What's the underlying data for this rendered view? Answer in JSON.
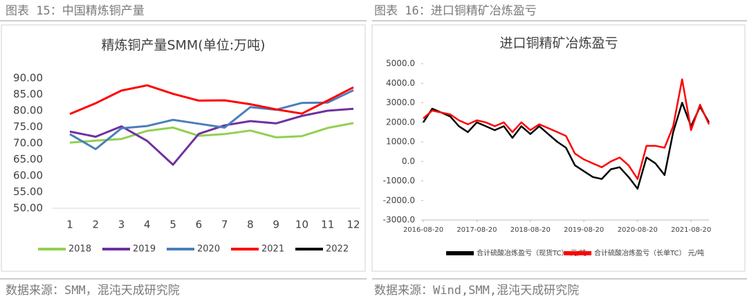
{
  "header_left": "图表 15：中国精炼铜产量",
  "header_right": "图表 16：进口铜精矿冶炼盈亏",
  "source_left": "数据来源：SMM，混沌天成研究院",
  "source_right": "数据来源：Wind,SMM,混沌天成研究院",
  "chart_data": [
    {
      "type": "line",
      "title": "精炼铜产量SMM(单位:万吨)",
      "categories": [
        "1",
        "2",
        "3",
        "4",
        "5",
        "6",
        "7",
        "8",
        "9",
        "10",
        "11",
        "12"
      ],
      "ylim": [
        50,
        90
      ],
      "yticks": [
        {
          "value": 50,
          "label": "50.00"
        },
        {
          "value": 55,
          "label": "55.00"
        },
        {
          "value": 60,
          "label": "60.00"
        },
        {
          "value": 65,
          "label": "65.00"
        },
        {
          "value": 70,
          "label": "70.00"
        },
        {
          "value": 75,
          "label": "75.00"
        },
        {
          "value": 80,
          "label": "80.00"
        },
        {
          "value": 85,
          "label": "85.00"
        },
        {
          "value": 90,
          "label": "90.00"
        }
      ],
      "grid": false,
      "series": [
        {
          "name": "2018",
          "color": "#92d050",
          "values": [
            70.2,
            70.8,
            71.3,
            73.8,
            74.8,
            72.3,
            72.8,
            73.9,
            71.8,
            72.2,
            74.7,
            76.2
          ]
        },
        {
          "name": "2019",
          "color": "#7030a0",
          "values": [
            73.6,
            72.0,
            75.2,
            70.7,
            63.4,
            72.9,
            75.5,
            76.8,
            76.1,
            78.4,
            80.0,
            80.6
          ]
        },
        {
          "name": "2020",
          "color": "#4a7ebb",
          "values": [
            72.8,
            68.2,
            74.6,
            75.3,
            77.2,
            76.0,
            74.8,
            81.1,
            80.3,
            82.4,
            82.5,
            86.3
          ]
        },
        {
          "name": "2021",
          "color": "#ff0000",
          "values": [
            79.0,
            82.3,
            86.2,
            87.8,
            85.2,
            83.1,
            83.2,
            82.0,
            80.4,
            79.1,
            83.1,
            87.2
          ]
        },
        {
          "name": "2022",
          "color": "#000000",
          "values": [
            null,
            null,
            null,
            null,
            null,
            null,
            null,
            null,
            null,
            null,
            null,
            null
          ]
        }
      ]
    },
    {
      "type": "line",
      "title": "进口铜精矿冶炼盈亏",
      "x": [
        "2016-08-20",
        "2016-10-20",
        "2016-12-20",
        "2017-02-20",
        "2017-04-20",
        "2017-06-20",
        "2017-08-20",
        "2017-10-20",
        "2017-12-20",
        "2018-02-20",
        "2018-04-20",
        "2018-06-20",
        "2018-08-20",
        "2018-10-20",
        "2018-12-20",
        "2019-02-20",
        "2019-04-20",
        "2019-06-20",
        "2019-08-20",
        "2019-10-20",
        "2019-12-20",
        "2020-02-20",
        "2020-04-20",
        "2020-06-20",
        "2020-08-20",
        "2020-10-20",
        "2020-12-20",
        "2021-02-20",
        "2021-04-20",
        "2021-06-20",
        "2021-08-20",
        "2021-10-20",
        "2021-12-20"
      ],
      "xlim": [
        "2016-08-20",
        "2021-12-20"
      ],
      "xticks": [
        "2016-08-20",
        "2017-08-20",
        "2018-08-20",
        "2019-08-20",
        "2020-08-20",
        "2021-08-20"
      ],
      "ylim": [
        -3000,
        5000
      ],
      "yticks": [
        {
          "value": -3000,
          "label": "-3000.0"
        },
        {
          "value": -2000,
          "label": "-2000.0"
        },
        {
          "value": -1000,
          "label": "-1000.0"
        },
        {
          "value": 0,
          "label": "0.0"
        },
        {
          "value": 1000,
          "label": "1000.0"
        },
        {
          "value": 2000,
          "label": "2000.0"
        },
        {
          "value": 3000,
          "label": "3000.0"
        },
        {
          "value": 4000,
          "label": "4000.0"
        },
        {
          "value": 5000,
          "label": "5000.0"
        }
      ],
      "grid": false,
      "series": [
        {
          "name": "合计硫酸冶炼盈亏（现货TC） 元/吨",
          "color": "#000000",
          "values": [
            2000,
            2700,
            2500,
            2300,
            1800,
            1500,
            2000,
            1800,
            1600,
            1800,
            1200,
            1800,
            1400,
            1800,
            1400,
            1000,
            700,
            -200,
            -500,
            -800,
            -900,
            -400,
            -300,
            -800,
            -1400,
            200,
            -100,
            -700,
            1500,
            3000,
            1800,
            2800,
            2000
          ]
        },
        {
          "name": "合计硫酸冶炼盈亏（长单TC） 元/吨",
          "color": "#ff0000",
          "values": [
            2200,
            2600,
            2500,
            2400,
            2100,
            1900,
            2100,
            2000,
            1800,
            2000,
            1500,
            2000,
            1600,
            1900,
            1700,
            1500,
            1300,
            400,
            100,
            -100,
            -300,
            0,
            200,
            -200,
            -900,
            800,
            800,
            700,
            1800,
            4200,
            1600,
            2900,
            1900
          ]
        }
      ]
    }
  ]
}
